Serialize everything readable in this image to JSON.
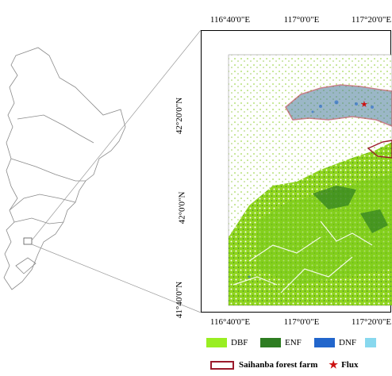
{
  "axes": {
    "top_ticks": [
      "116°40'0\"E",
      "117°0'0\"E",
      "117°20'0\"E"
    ],
    "bottom_ticks": [
      "116°40'0\"E",
      "117°0'0\"E",
      "117°20'0\"E"
    ],
    "left_ticks": [
      "42°20'0\"N",
      "42°0'0\"N",
      "41°40'0\"N"
    ]
  },
  "legend": {
    "classes": [
      {
        "label": "DBF",
        "color": "#99ee22"
      },
      {
        "label": "ENF",
        "color": "#2e7d22"
      },
      {
        "label": "DNF",
        "color": "#2266cc"
      },
      {
        "label": "",
        "color": "#88d8ee"
      }
    ],
    "boundary_label": "Saihanba forest farm",
    "boundary_color": "#9b1a2c",
    "flux_label": "Flux",
    "flux_color": "#cc1111"
  }
}
